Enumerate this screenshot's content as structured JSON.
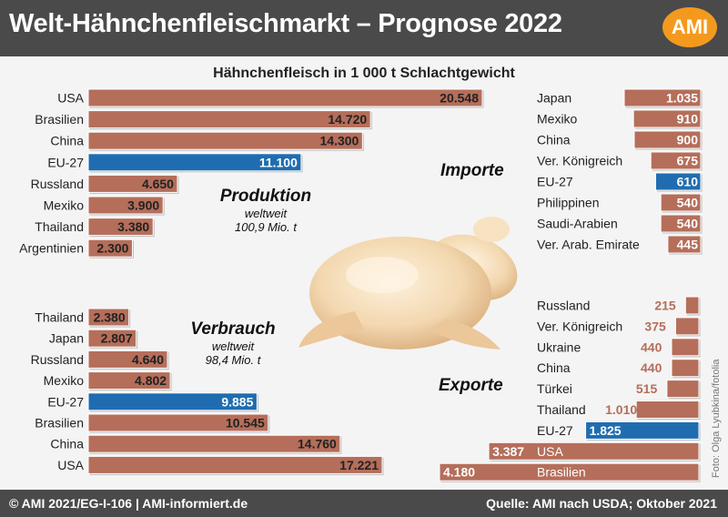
{
  "header": {
    "title": "Welt-Hähnchenfleischmarkt – Prognose 2022",
    "logo": "AMI"
  },
  "subtitle": "Hähnchenfleisch in 1 000 t Schlachtgewicht",
  "footer": {
    "left": "© AMI 2021/EG-I-106 | AMI-informiert.de",
    "right": "Quelle: AMI nach USDA; Oktober 2021"
  },
  "photo_credit": "Foto: Olga Lyubkina/fotolia",
  "colors": {
    "bar": "#b56e5a",
    "highlight": "#1f6db0",
    "header": "#4a4a4a",
    "accent": "#f39a1e"
  },
  "labels": {
    "produktion": {
      "title": "Produktion",
      "line1": "weltweit",
      "line2": "100,9 Mio. t"
    },
    "verbrauch": {
      "title": "Verbrauch",
      "line1": "weltweit",
      "line2": "98,4 Mio. t"
    },
    "importe": "Importe",
    "exporte": "Exporte"
  },
  "chart_data": [
    {
      "id": "produktion",
      "type": "bar",
      "orientation": "horizontal",
      "categories": [
        "USA",
        "Brasilien",
        "China",
        "EU-27",
        "Russland",
        "Mexiko",
        "Thailand",
        "Argentinien"
      ],
      "values": [
        20548,
        14720,
        14300,
        11100,
        4650,
        3900,
        3380,
        2300
      ],
      "value_labels": [
        "20.548",
        "14.720",
        "14.300",
        "11.100",
        "4.650",
        "3.900",
        "3.380",
        "2.300"
      ],
      "highlight": "EU-27"
    },
    {
      "id": "importe",
      "type": "bar",
      "orientation": "horizontal",
      "categories": [
        "Japan",
        "Mexiko",
        "China",
        "Ver. Königreich",
        "EU-27",
        "Philippinen",
        "Saudi-Arabien",
        "Ver. Arab. Emirate"
      ],
      "values": [
        1035,
        910,
        900,
        675,
        610,
        540,
        540,
        445
      ],
      "value_labels": [
        "1.035",
        "910",
        "900",
        "675",
        "610",
        "540",
        "540",
        "445"
      ],
      "highlight": "EU-27"
    },
    {
      "id": "verbrauch",
      "type": "bar",
      "orientation": "horizontal",
      "categories": [
        "Thailand",
        "Japan",
        "Russland",
        "Mexiko",
        "EU-27",
        "Brasilien",
        "China",
        "USA"
      ],
      "values": [
        2380,
        2807,
        4640,
        4802,
        9885,
        10545,
        14760,
        17221
      ],
      "value_labels": [
        "2.380",
        "2.807",
        "4.640",
        "4.802",
        "9.885",
        "10.545",
        "14.760",
        "17.221"
      ],
      "highlight": "EU-27"
    },
    {
      "id": "exporte",
      "type": "bar",
      "orientation": "horizontal",
      "categories": [
        "Russland",
        "Ver. Königreich",
        "Ukraine",
        "China",
        "Türkei",
        "Thailand",
        "EU-27",
        "USA",
        "Brasilien"
      ],
      "values": [
        215,
        375,
        440,
        440,
        515,
        1010,
        1825,
        3387,
        4180
      ],
      "value_labels": [
        "215",
        "375",
        "440",
        "440",
        "515",
        "1.010",
        "1.825",
        "3.387",
        "4.180"
      ],
      "highlight": "EU-27"
    }
  ]
}
